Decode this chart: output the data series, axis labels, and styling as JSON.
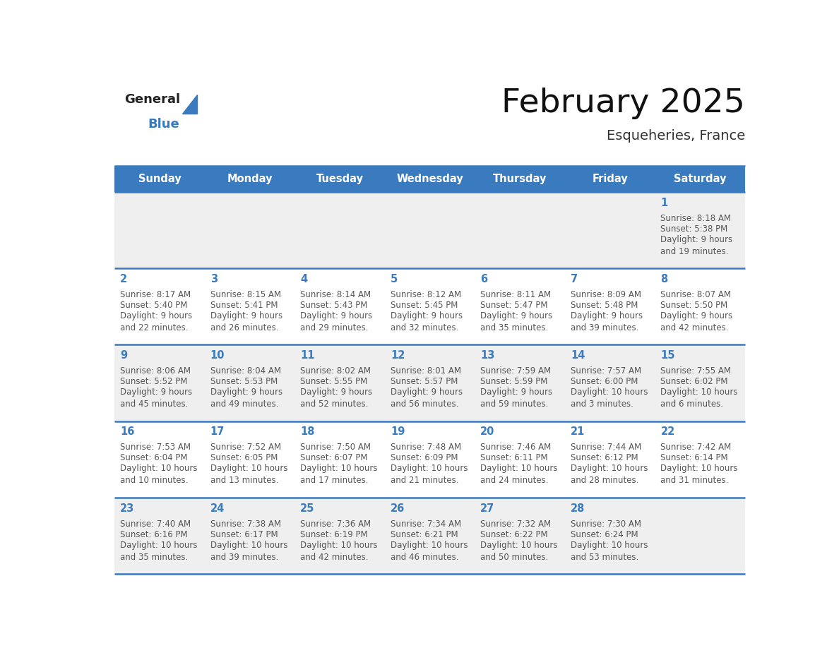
{
  "title": "February 2025",
  "subtitle": "Esqueheries, France",
  "header_bg_color": "#3a7bbf",
  "header_text_color": "#ffffff",
  "weekdays": [
    "Sunday",
    "Monday",
    "Tuesday",
    "Wednesday",
    "Thursday",
    "Friday",
    "Saturday"
  ],
  "row_bg_odd": "#efefef",
  "row_bg_even": "#ffffff",
  "day_number_color": "#3a7bbf",
  "info_text_color": "#555555",
  "border_color": "#3a7bbf",
  "calendar": [
    [
      {
        "day": "",
        "sunrise": "",
        "sunset": "",
        "daylight": ""
      },
      {
        "day": "",
        "sunrise": "",
        "sunset": "",
        "daylight": ""
      },
      {
        "day": "",
        "sunrise": "",
        "sunset": "",
        "daylight": ""
      },
      {
        "day": "",
        "sunrise": "",
        "sunset": "",
        "daylight": ""
      },
      {
        "day": "",
        "sunrise": "",
        "sunset": "",
        "daylight": ""
      },
      {
        "day": "",
        "sunrise": "",
        "sunset": "",
        "daylight": ""
      },
      {
        "day": "1",
        "sunrise": "8:18 AM",
        "sunset": "5:38 PM",
        "daylight": "9 hours\nand 19 minutes."
      }
    ],
    [
      {
        "day": "2",
        "sunrise": "8:17 AM",
        "sunset": "5:40 PM",
        "daylight": "9 hours\nand 22 minutes."
      },
      {
        "day": "3",
        "sunrise": "8:15 AM",
        "sunset": "5:41 PM",
        "daylight": "9 hours\nand 26 minutes."
      },
      {
        "day": "4",
        "sunrise": "8:14 AM",
        "sunset": "5:43 PM",
        "daylight": "9 hours\nand 29 minutes."
      },
      {
        "day": "5",
        "sunrise": "8:12 AM",
        "sunset": "5:45 PM",
        "daylight": "9 hours\nand 32 minutes."
      },
      {
        "day": "6",
        "sunrise": "8:11 AM",
        "sunset": "5:47 PM",
        "daylight": "9 hours\nand 35 minutes."
      },
      {
        "day": "7",
        "sunrise": "8:09 AM",
        "sunset": "5:48 PM",
        "daylight": "9 hours\nand 39 minutes."
      },
      {
        "day": "8",
        "sunrise": "8:07 AM",
        "sunset": "5:50 PM",
        "daylight": "9 hours\nand 42 minutes."
      }
    ],
    [
      {
        "day": "9",
        "sunrise": "8:06 AM",
        "sunset": "5:52 PM",
        "daylight": "9 hours\nand 45 minutes."
      },
      {
        "day": "10",
        "sunrise": "8:04 AM",
        "sunset": "5:53 PM",
        "daylight": "9 hours\nand 49 minutes."
      },
      {
        "day": "11",
        "sunrise": "8:02 AM",
        "sunset": "5:55 PM",
        "daylight": "9 hours\nand 52 minutes."
      },
      {
        "day": "12",
        "sunrise": "8:01 AM",
        "sunset": "5:57 PM",
        "daylight": "9 hours\nand 56 minutes."
      },
      {
        "day": "13",
        "sunrise": "7:59 AM",
        "sunset": "5:59 PM",
        "daylight": "9 hours\nand 59 minutes."
      },
      {
        "day": "14",
        "sunrise": "7:57 AM",
        "sunset": "6:00 PM",
        "daylight": "10 hours\nand 3 minutes."
      },
      {
        "day": "15",
        "sunrise": "7:55 AM",
        "sunset": "6:02 PM",
        "daylight": "10 hours\nand 6 minutes."
      }
    ],
    [
      {
        "day": "16",
        "sunrise": "7:53 AM",
        "sunset": "6:04 PM",
        "daylight": "10 hours\nand 10 minutes."
      },
      {
        "day": "17",
        "sunrise": "7:52 AM",
        "sunset": "6:05 PM",
        "daylight": "10 hours\nand 13 minutes."
      },
      {
        "day": "18",
        "sunrise": "7:50 AM",
        "sunset": "6:07 PM",
        "daylight": "10 hours\nand 17 minutes."
      },
      {
        "day": "19",
        "sunrise": "7:48 AM",
        "sunset": "6:09 PM",
        "daylight": "10 hours\nand 21 minutes."
      },
      {
        "day": "20",
        "sunrise": "7:46 AM",
        "sunset": "6:11 PM",
        "daylight": "10 hours\nand 24 minutes."
      },
      {
        "day": "21",
        "sunrise": "7:44 AM",
        "sunset": "6:12 PM",
        "daylight": "10 hours\nand 28 minutes."
      },
      {
        "day": "22",
        "sunrise": "7:42 AM",
        "sunset": "6:14 PM",
        "daylight": "10 hours\nand 31 minutes."
      }
    ],
    [
      {
        "day": "23",
        "sunrise": "7:40 AM",
        "sunset": "6:16 PM",
        "daylight": "10 hours\nand 35 minutes."
      },
      {
        "day": "24",
        "sunrise": "7:38 AM",
        "sunset": "6:17 PM",
        "daylight": "10 hours\nand 39 minutes."
      },
      {
        "day": "25",
        "sunrise": "7:36 AM",
        "sunset": "6:19 PM",
        "daylight": "10 hours\nand 42 minutes."
      },
      {
        "day": "26",
        "sunrise": "7:34 AM",
        "sunset": "6:21 PM",
        "daylight": "10 hours\nand 46 minutes."
      },
      {
        "day": "27",
        "sunrise": "7:32 AM",
        "sunset": "6:22 PM",
        "daylight": "10 hours\nand 50 minutes."
      },
      {
        "day": "28",
        "sunrise": "7:30 AM",
        "sunset": "6:24 PM",
        "daylight": "10 hours\nand 53 minutes."
      },
      {
        "day": "",
        "sunrise": "",
        "sunset": "",
        "daylight": ""
      }
    ]
  ]
}
